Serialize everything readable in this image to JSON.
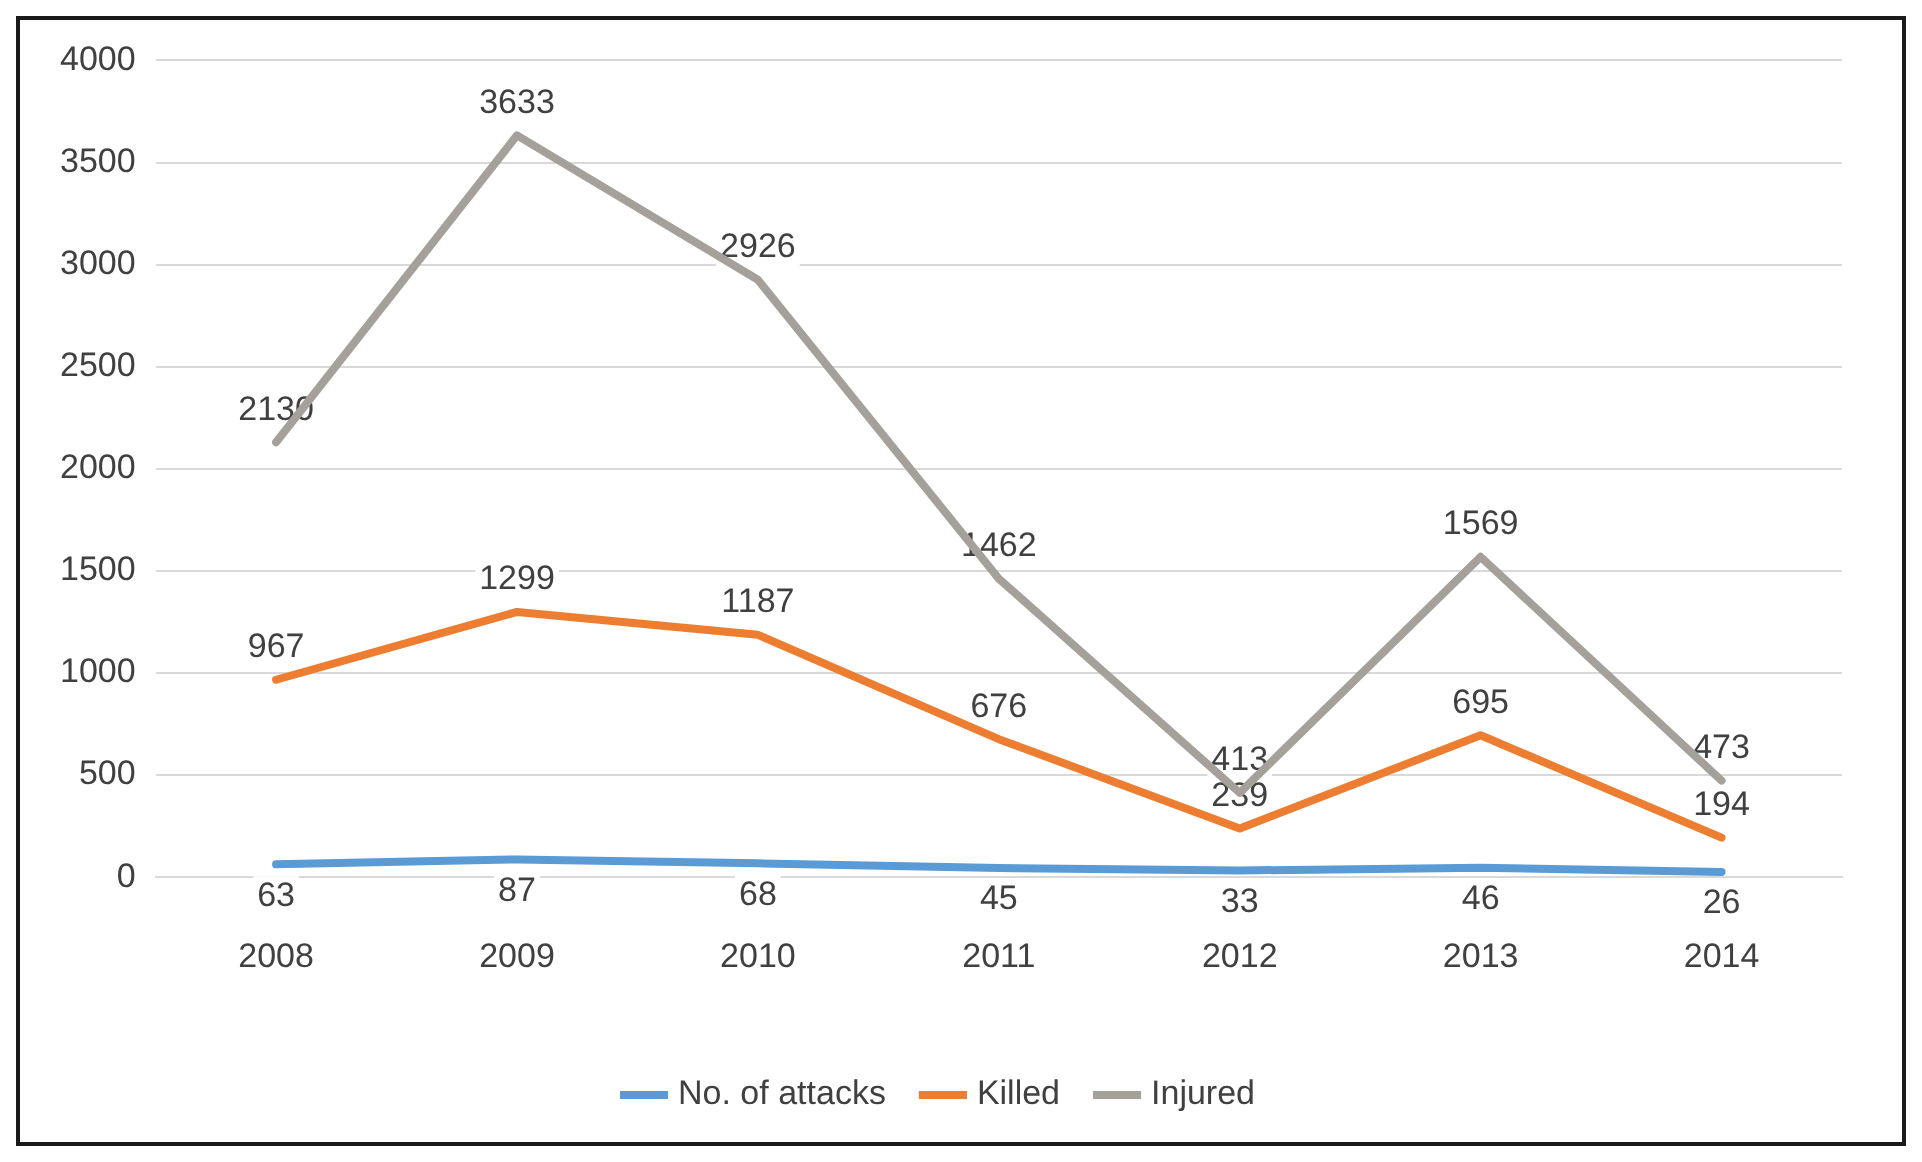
{
  "chart_data": {
    "type": "line",
    "categories": [
      "2008",
      "2009",
      "2010",
      "2011",
      "2012",
      "2013",
      "2014"
    ],
    "series": [
      {
        "name": "No. of attacks",
        "color": "#5b9bd5",
        "values": [
          63,
          87,
          68,
          45,
          33,
          46,
          26
        ]
      },
      {
        "name": "Killed",
        "color": "#ed7d31",
        "values": [
          967,
          1299,
          1187,
          676,
          239,
          695,
          194
        ]
      },
      {
        "name": "Injured",
        "color": "#a5a09a",
        "values": [
          2130,
          3633,
          2926,
          1462,
          413,
          1569,
          473
        ]
      }
    ],
    "ylim": [
      0,
      4000
    ],
    "yticks": [
      0,
      500,
      1000,
      1500,
      2000,
      2500,
      3000,
      3500,
      4000
    ],
    "grid": "y",
    "legend": "bottom",
    "data_labels": true,
    "marker": "none",
    "line_style": "solid"
  }
}
